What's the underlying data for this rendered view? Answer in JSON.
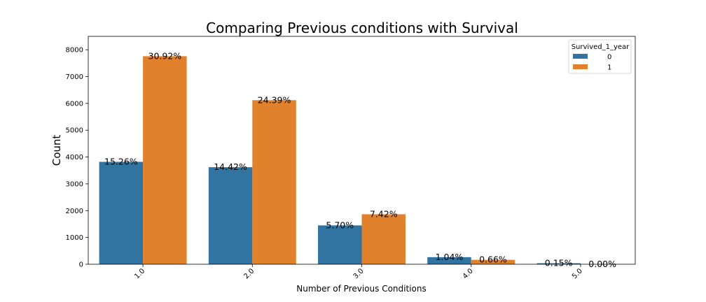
{
  "chart_data": {
    "type": "bar",
    "title": "Comparing Previous conditions with Survival",
    "xlabel": "Number of Previous Conditions",
    "ylabel": "Count",
    "categories": [
      "1.0",
      "2.0",
      "3.0",
      "4.0",
      "5.0"
    ],
    "ylim": [
      0,
      8500
    ],
    "yticks": [
      0,
      1000,
      2000,
      3000,
      4000,
      5000,
      6000,
      7000,
      8000
    ],
    "legend": {
      "title": "Survived_1_year",
      "position": "top-right"
    },
    "series": [
      {
        "name": "0",
        "color": "#3274a1",
        "values": [
          3820,
          3620,
          1450,
          265,
          38
        ],
        "labels": [
          "15.26%",
          "14.42%",
          "5.70%",
          "1.04%",
          "0.15%"
        ]
      },
      {
        "name": "1",
        "color": "#e1812c",
        "values": [
          7760,
          6120,
          1865,
          165,
          0
        ],
        "labels": [
          "30.92%",
          "24.39%",
          "7.42%",
          "0.66%",
          "0.00%"
        ]
      }
    ]
  }
}
